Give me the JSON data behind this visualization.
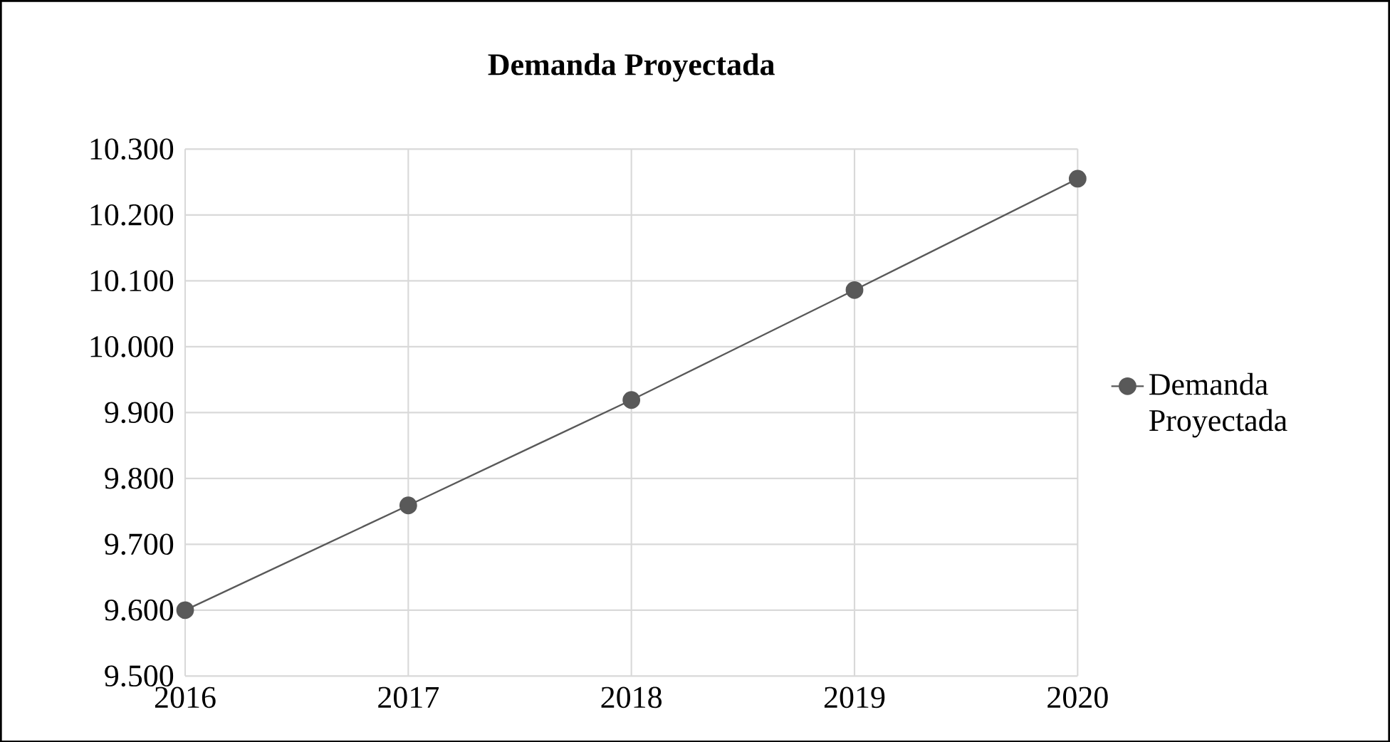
{
  "chart_data": {
    "type": "line",
    "title": "Demanda Proyectada",
    "x": [
      2016,
      2017,
      2018,
      2019,
      2020
    ],
    "series": [
      {
        "name": "Demanda Proyectada",
        "color": "#595959",
        "values": [
          9600,
          9759,
          9919,
          10086,
          10255
        ]
      }
    ],
    "xlim": [
      2016,
      2020
    ],
    "xticks": [
      2016,
      2017,
      2018,
      2019,
      2020
    ],
    "ylim": [
      9500,
      10300
    ],
    "yticks": [
      {
        "value": 9500,
        "label": "9.500"
      },
      {
        "value": 9600,
        "label": "9.600"
      },
      {
        "value": 9700,
        "label": "9.700"
      },
      {
        "value": 9800,
        "label": "9.800"
      },
      {
        "value": 9900,
        "label": "9.900"
      },
      {
        "value": 10000,
        "label": "10.000"
      },
      {
        "value": 10100,
        "label": "10.100"
      },
      {
        "value": 10200,
        "label": "10.200"
      },
      {
        "value": 10300,
        "label": "10.300"
      }
    ],
    "grid": true,
    "legend": "right",
    "marker": "circle",
    "line_style": "solid"
  }
}
